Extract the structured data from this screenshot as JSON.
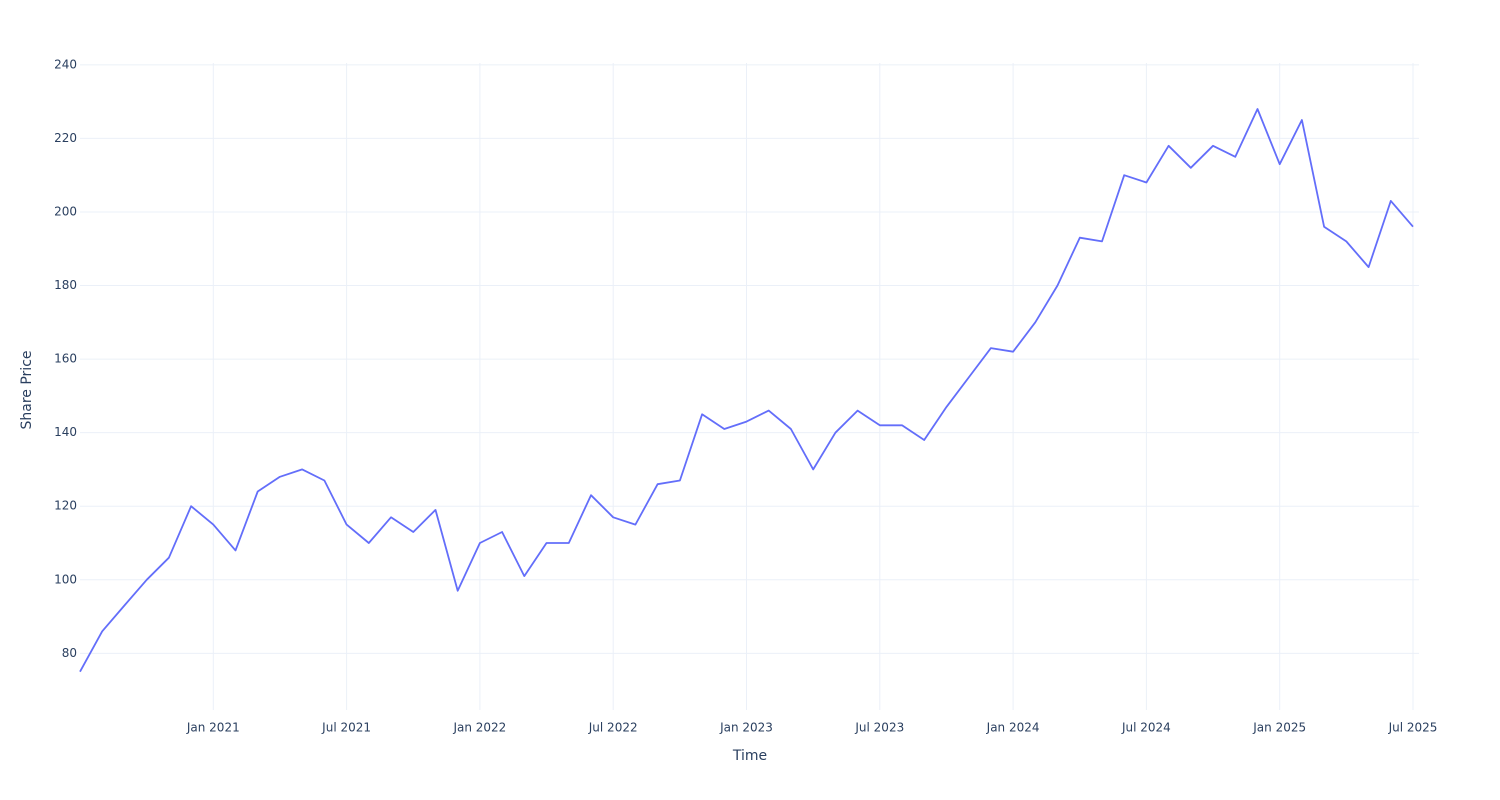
{
  "chart_data": {
    "type": "line",
    "x_label": "Time",
    "y_label": "Share Price",
    "x": [
      "2020-07",
      "2020-08",
      "2020-09",
      "2020-10",
      "2020-11",
      "2020-12",
      "2021-01",
      "2021-02",
      "2021-03",
      "2021-04",
      "2021-05",
      "2021-06",
      "2021-07",
      "2021-08",
      "2021-09",
      "2021-10",
      "2021-11",
      "2021-12",
      "2022-01",
      "2022-02",
      "2022-03",
      "2022-04",
      "2022-05",
      "2022-06",
      "2022-07",
      "2022-08",
      "2022-09",
      "2022-10",
      "2022-11",
      "2022-12",
      "2023-01",
      "2023-02",
      "2023-03",
      "2023-04",
      "2023-05",
      "2023-06",
      "2023-07",
      "2023-08",
      "2023-09",
      "2023-10",
      "2023-11",
      "2023-12",
      "2024-01",
      "2024-02",
      "2024-03",
      "2024-04",
      "2024-05",
      "2024-06",
      "2024-07",
      "2024-08",
      "2024-09",
      "2024-10",
      "2024-11",
      "2024-12",
      "2025-01",
      "2025-02",
      "2025-03",
      "2025-04",
      "2025-05",
      "2025-06",
      "2025-07"
    ],
    "series": [
      {
        "name": "Share Price",
        "color": "#636efa",
        "values": [
          75,
          86,
          93,
          100,
          106,
          120,
          115,
          108,
          124,
          128,
          130,
          127,
          115,
          110,
          117,
          113,
          119,
          97,
          110,
          113,
          101,
          110,
          110,
          123,
          117,
          115,
          126,
          127,
          145,
          141,
          143,
          146,
          141,
          130,
          140,
          146,
          142,
          142,
          138,
          147,
          155,
          163,
          162,
          170,
          180,
          193,
          192,
          210,
          208,
          218,
          212,
          218,
          215,
          228,
          213,
          225,
          196,
          192,
          185,
          203,
          196
        ]
      }
    ],
    "xlim": [
      "2020-07",
      "2025-07"
    ],
    "xticks": [
      {
        "value": "2021-01",
        "label": "Jan 2021"
      },
      {
        "value": "2021-07",
        "label": "Jul 2021"
      },
      {
        "value": "2022-01",
        "label": "Jan 2022"
      },
      {
        "value": "2022-07",
        "label": "Jul 2022"
      },
      {
        "value": "2023-01",
        "label": "Jan 2023"
      },
      {
        "value": "2023-07",
        "label": "Jul 2023"
      },
      {
        "value": "2024-01",
        "label": "Jan 2024"
      },
      {
        "value": "2024-07",
        "label": "Jul 2024"
      },
      {
        "value": "2025-01",
        "label": "Jan 2025"
      },
      {
        "value": "2025-07",
        "label": "Jul 2025"
      }
    ],
    "ylim": [
      64.6,
      240.5
    ],
    "yticks": [
      80,
      100,
      120,
      140,
      160,
      180,
      200,
      220,
      240
    ],
    "grid": true
  }
}
